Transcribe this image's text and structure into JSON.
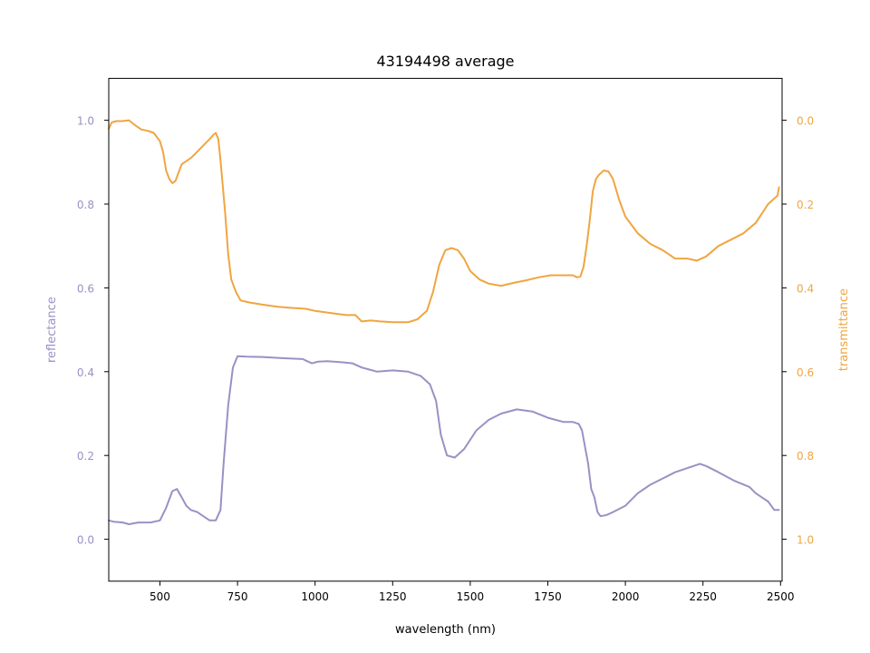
{
  "colors": {
    "reflectance": "#9892c4",
    "transmittance": "#f0a540",
    "axis": "#000000"
  },
  "chart_data": {
    "type": "line",
    "title": "43194498 average",
    "xlabel": "wavelength (nm)",
    "ylabel_left": "reflectance",
    "ylabel_right": "transmittance",
    "xlim": [
      335,
      2505
    ],
    "ylim_left": [
      -0.1,
      1.1
    ],
    "ylim_right": [
      1.1,
      -0.1
    ],
    "y_right_inverted": true,
    "grid": false,
    "legend": "none",
    "x_ticks": [
      500,
      750,
      1000,
      1250,
      1500,
      1750,
      2000,
      2250,
      2500
    ],
    "x_tick_labels": [
      "500",
      "750",
      "1000",
      "1250",
      "1500",
      "1750",
      "2000",
      "2250",
      "2500"
    ],
    "y_left_ticks": [
      0.0,
      0.2,
      0.4,
      0.6,
      0.8,
      1.0
    ],
    "y_left_tick_labels": [
      "0.0",
      "0.2",
      "0.4",
      "0.6",
      "0.8",
      "1.0"
    ],
    "y_right_ticks": [
      0.0,
      0.2,
      0.4,
      0.6,
      0.8,
      1.0
    ],
    "y_right_tick_labels": [
      "0.0",
      "0.2",
      "0.4",
      "0.6",
      "0.8",
      "1.0"
    ],
    "series": [
      {
        "name": "reflectance",
        "axis": "left",
        "color": "#9892c4",
        "x": [
          335,
          350,
          380,
          400,
          430,
          470,
          500,
          520,
          540,
          555,
          570,
          585,
          600,
          620,
          640,
          660,
          680,
          695,
          705,
          720,
          735,
          750,
          780,
          830,
          900,
          960,
          975,
          990,
          1000,
          1010,
          1040,
          1080,
          1120,
          1150,
          1175,
          1200,
          1250,
          1300,
          1340,
          1370,
          1390,
          1405,
          1425,
          1450,
          1480,
          1520,
          1560,
          1600,
          1650,
          1700,
          1750,
          1800,
          1830,
          1850,
          1860,
          1880,
          1890,
          1900,
          1910,
          1920,
          1940,
          1960,
          2000,
          2040,
          2080,
          2120,
          2160,
          2200,
          2220,
          2240,
          2260,
          2300,
          2350,
          2400,
          2420,
          2440,
          2460,
          2480,
          2495
        ],
        "y": [
          0.045,
          0.042,
          0.04,
          0.036,
          0.04,
          0.04,
          0.045,
          0.075,
          0.115,
          0.12,
          0.1,
          0.08,
          0.07,
          0.065,
          0.055,
          0.045,
          0.045,
          0.07,
          0.18,
          0.32,
          0.41,
          0.437,
          0.436,
          0.435,
          0.432,
          0.43,
          0.425,
          0.42,
          0.422,
          0.424,
          0.425,
          0.423,
          0.42,
          0.41,
          0.405,
          0.4,
          0.403,
          0.4,
          0.39,
          0.37,
          0.33,
          0.25,
          0.2,
          0.195,
          0.215,
          0.26,
          0.285,
          0.3,
          0.31,
          0.305,
          0.29,
          0.28,
          0.28,
          0.275,
          0.26,
          0.18,
          0.12,
          0.1,
          0.065,
          0.055,
          0.058,
          0.065,
          0.08,
          0.11,
          0.13,
          0.145,
          0.16,
          0.17,
          0.175,
          0.18,
          0.175,
          0.16,
          0.14,
          0.125,
          0.11,
          0.1,
          0.09,
          0.07,
          0.07
        ]
      },
      {
        "name": "transmittance",
        "axis": "right",
        "color": "#f0a540",
        "x": [
          335,
          345,
          360,
          380,
          400,
          420,
          440,
          460,
          480,
          500,
          510,
          520,
          530,
          540,
          550,
          560,
          570,
          580,
          600,
          620,
          640,
          660,
          672,
          680,
          688,
          695,
          710,
          720,
          730,
          745,
          760,
          790,
          830,
          880,
          930,
          970,
          1000,
          1050,
          1100,
          1130,
          1150,
          1180,
          1210,
          1250,
          1300,
          1330,
          1360,
          1380,
          1400,
          1420,
          1440,
          1460,
          1480,
          1500,
          1530,
          1560,
          1600,
          1640,
          1680,
          1720,
          1760,
          1790,
          1810,
          1830,
          1845,
          1855,
          1865,
          1875,
          1885,
          1895,
          1905,
          1915,
          1930,
          1945,
          1960,
          1980,
          2000,
          2040,
          2080,
          2120,
          2160,
          2200,
          2230,
          2260,
          2300,
          2340,
          2380,
          2420,
          2460,
          2490,
          2495
        ],
        "y": [
          0.02,
          0.005,
          0.002,
          0.002,
          0.0,
          0.012,
          0.022,
          0.025,
          0.03,
          0.05,
          0.075,
          0.12,
          0.14,
          0.15,
          0.145,
          0.125,
          0.105,
          0.1,
          0.09,
          0.075,
          0.06,
          0.045,
          0.035,
          0.03,
          0.045,
          0.095,
          0.22,
          0.32,
          0.38,
          0.41,
          0.43,
          0.435,
          0.44,
          0.445,
          0.448,
          0.45,
          0.455,
          0.46,
          0.465,
          0.465,
          0.48,
          0.478,
          0.48,
          0.482,
          0.482,
          0.475,
          0.455,
          0.41,
          0.345,
          0.31,
          0.305,
          0.31,
          0.33,
          0.36,
          0.38,
          0.39,
          0.395,
          0.388,
          0.382,
          0.375,
          0.37,
          0.37,
          0.37,
          0.37,
          0.375,
          0.373,
          0.35,
          0.3,
          0.24,
          0.17,
          0.14,
          0.13,
          0.12,
          0.122,
          0.14,
          0.19,
          0.23,
          0.27,
          0.295,
          0.31,
          0.33,
          0.33,
          0.335,
          0.325,
          0.3,
          0.285,
          0.27,
          0.245,
          0.2,
          0.18,
          0.16
        ]
      }
    ]
  }
}
